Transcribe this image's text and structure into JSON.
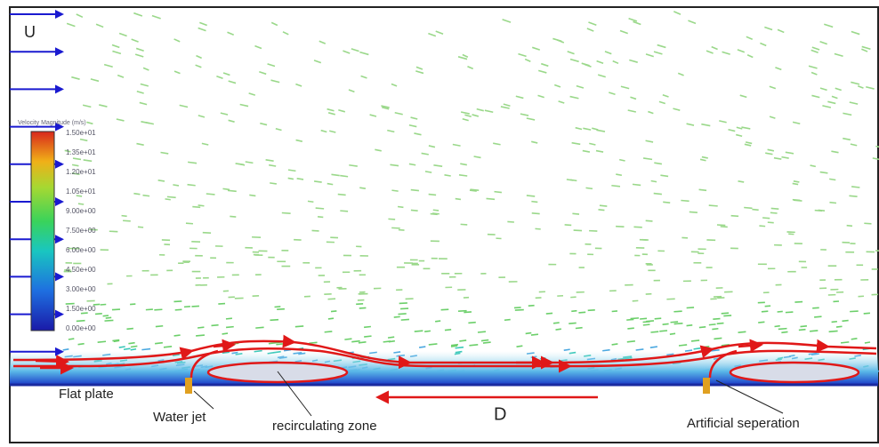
{
  "inlet_label": "U",
  "colorbar": {
    "title": "Velocity Magnitude (m/s)",
    "ticks": [
      "1.50e+01",
      "1.35e+01",
      "1.20e+01",
      "1.05e+01",
      "9.00e+00",
      "7.50e+00",
      "6.00e+00",
      "4.50e+00",
      "3.00e+00",
      "1.50e+00",
      "0.00e+00"
    ]
  },
  "labels": {
    "flat_plate": "Flat plate",
    "water_jet": "Water jet",
    "recirculating_zone": "recirculating zone",
    "direction": "D",
    "artificial_separation": "Artificial seperation"
  }
}
